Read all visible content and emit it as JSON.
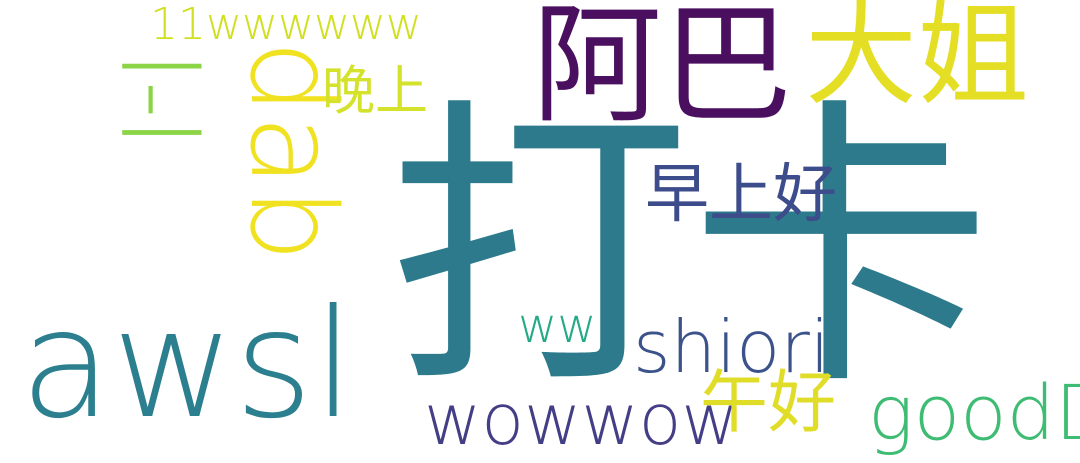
{
  "words": [
    {
      "text": "打卡",
      "color": "#2c7a8c"
    },
    {
      "text": "awsl",
      "color": "#2c7f8e"
    },
    {
      "text": "阿巴",
      "color": "#4a0f5e"
    },
    {
      "text": "大姐",
      "color": "#e4df24"
    },
    {
      "text": "dab",
      "color": "#f0e220"
    },
    {
      "text": "l-l",
      "color": "#8ad445"
    },
    {
      "text": "11wwwwww",
      "color": "#d0e021"
    },
    {
      "text": "晚上",
      "color": "#d4e22c"
    },
    {
      "text": "早上好",
      "color": "#3d4c8a"
    },
    {
      "text": "shiori",
      "color": "#3b528b"
    },
    {
      "text": "ww",
      "color": "#25a986"
    },
    {
      "text": "wowwow",
      "color": "#433e85"
    },
    {
      "text": "午好",
      "color": "#e0dd28"
    },
    {
      "text": "goodD",
      "color": "#3fbc73"
    }
  ]
}
